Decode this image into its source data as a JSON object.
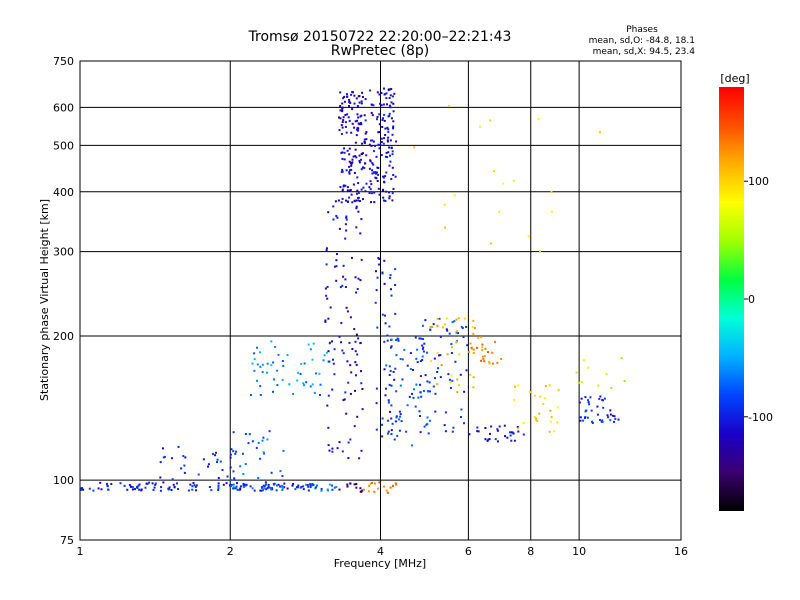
{
  "chart_data": {
    "type": "scatter",
    "title": "Tromsø 20150722 22:20:00–22:21:43",
    "subtitle": "RwPretec (8p)",
    "xlabel": "Frequency [MHz]",
    "ylabel": "Stationary phase Virtual Height [km]",
    "x_scale": "log",
    "y_scale": "log",
    "xlim": [
      1,
      16
    ],
    "ylim": [
      75,
      750
    ],
    "x_ticks": [
      1,
      2,
      4,
      6,
      8,
      10,
      16
    ],
    "x_tick_labels": [
      "1",
      "2",
      "4",
      "6",
      "8",
      "10",
      "16"
    ],
    "y_ticks": [
      75,
      100,
      200,
      300,
      400,
      500,
      600,
      750
    ],
    "y_tick_labels": [
      "75",
      "100",
      "200",
      "300",
      "400",
      "500",
      "600",
      "750"
    ],
    "grid": true,
    "legend": {
      "title": "Phases",
      "lines": [
        "mean, sd,O: -84.8, 18.1",
        "mean, sd,X:  94.5, 23.4"
      ],
      "placement": "top-right"
    },
    "colorbar": {
      "label": "[deg]",
      "ticks": [
        100,
        0,
        -100
      ],
      "tick_labels": [
        "100",
        "0",
        "-100"
      ],
      "range": [
        -180,
        180
      ],
      "colors": [
        "#000000",
        "#3a0070",
        "#1a00c8",
        "#0044ff",
        "#00b0ff",
        "#00ffd8",
        "#00ff40",
        "#a0ff00",
        "#ffff00",
        "#ffb000",
        "#ff5000",
        "#ff0000"
      ]
    },
    "series": [
      {
        "clusters": [
          {
            "x": [
              1.0,
              2.95
            ],
            "y": [
              95,
              99
            ],
            "phase": -100,
            "n": 130
          },
          {
            "x": [
              2.0,
              3.3
            ],
            "y": [
              95,
              98
            ],
            "phase": -70,
            "n": 40
          },
          {
            "x": [
              3.3,
              3.75
            ],
            "y": [
              94,
              99
            ],
            "phase": -140,
            "n": 12
          },
          {
            "x": [
              3.7,
              4.3
            ],
            "y": [
              94,
              99
            ],
            "phase": 130,
            "n": 16
          },
          {
            "x": [
              1.4,
              2.1
            ],
            "y": [
              100,
              118
            ],
            "phase": -100,
            "n": 35
          },
          {
            "x": [
              2.0,
              2.6
            ],
            "y": [
              100,
              130
            ],
            "phase": -70,
            "n": 25
          },
          {
            "x": [
              2.2,
              3.2
            ],
            "y": [
              150,
              195
            ],
            "phase": -60,
            "n": 55
          },
          {
            "x": [
              3.1,
              3.7
            ],
            "y": [
              110,
              400
            ],
            "phase": -110,
            "n": 110
          },
          {
            "x": [
              3.3,
              3.75
            ],
            "y": [
              380,
              650
            ],
            "phase": -115,
            "n": 160
          },
          {
            "x": [
              3.8,
              4.3
            ],
            "y": [
              380,
              660
            ],
            "phase": -110,
            "n": 140
          },
          {
            "x": [
              3.9,
              4.3
            ],
            "y": [
              120,
              300
            ],
            "phase": -100,
            "n": 50
          },
          {
            "x": [
              4.1,
              5.0
            ],
            "y": [
              118,
              200
            ],
            "phase": -85,
            "n": 70
          },
          {
            "x": [
              4.7,
              6.0
            ],
            "y": [
              125,
              220
            ],
            "phase": -90,
            "n": 60
          },
          {
            "x": [
              4.9,
              6.2
            ],
            "y": [
              150,
              220
            ],
            "phase": 110,
            "n": 35
          },
          {
            "x": [
              6.0,
              7.0
            ],
            "y": [
              175,
              200
            ],
            "phase": 130,
            "n": 25
          },
          {
            "x": [
              6.0,
              7.8
            ],
            "y": [
              120,
              130
            ],
            "phase": -110,
            "n": 30
          },
          {
            "x": [
              7.4,
              9.2
            ],
            "y": [
              125,
              160
            ],
            "phase": 100,
            "n": 25
          },
          {
            "x": [
              10.0,
              12.0
            ],
            "y": [
              130,
              150
            ],
            "phase": -95,
            "n": 40
          },
          {
            "x": [
              4.5,
              12.5
            ],
            "y": [
              300,
              620
            ],
            "phase": 90,
            "n": 18
          },
          {
            "x": [
              9.8,
              12.5
            ],
            "y": [
              150,
              180
            ],
            "phase": 60,
            "n": 10
          }
        ]
      }
    ]
  }
}
